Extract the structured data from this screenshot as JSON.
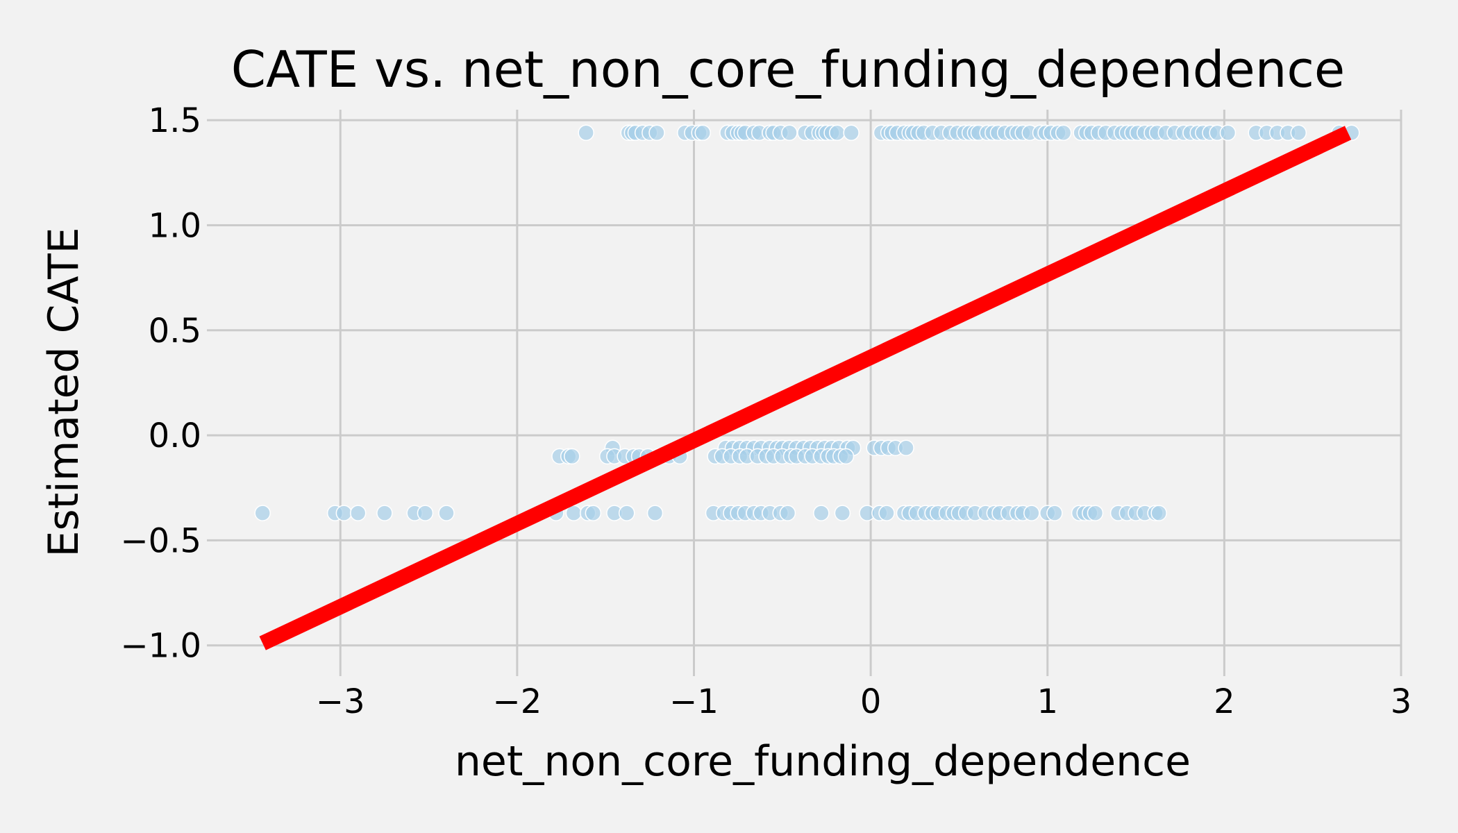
{
  "chart_data": {
    "type": "scatter",
    "title": "CATE vs. net_non_core_funding_dependence",
    "xlabel": "net_non_core_funding_dependence",
    "ylabel": "Estimated CATE",
    "xlim": [
      -3.7,
      3.0
    ],
    "ylim": [
      -1.1,
      1.55
    ],
    "xticks": [
      -3,
      -2,
      -1,
      0,
      1,
      2,
      3
    ],
    "xtick_labels": [
      "−3",
      "−2",
      "−1",
      "0",
      "1",
      "2",
      "3"
    ],
    "yticks": [
      -1.0,
      -0.5,
      0.0,
      0.5,
      1.0,
      1.5
    ],
    "ytick_labels": [
      "−1.0",
      "−0.5",
      "0.0",
      "0.5",
      "1.0",
      "1.5"
    ],
    "grid": true,
    "colors": {
      "points": "#a6cfe8",
      "fit_line": "#ff0000",
      "background": "#f2f2f2",
      "grid": "#cbcbcb"
    },
    "series": [
      {
        "kind": "scatter",
        "y_levels": [
          {
            "y": 1.44,
            "x": [
              -1.61,
              -1.37,
              -1.35,
              -1.33,
              -1.29,
              -1.25,
              -1.21,
              -1.05,
              -1.01,
              -0.97,
              -0.95,
              -0.81,
              -0.78,
              -0.75,
              -0.73,
              -0.71,
              -0.66,
              -0.63,
              -0.57,
              -0.55,
              -0.51,
              -0.46,
              -0.37,
              -0.33,
              -0.29,
              -0.27,
              -0.25,
              -0.22,
              -0.19,
              -0.11,
              0.06,
              0.1,
              0.12,
              0.15,
              0.19,
              0.22,
              0.24,
              0.27,
              0.3,
              0.35,
              0.4,
              0.45,
              0.49,
              0.53,
              0.56,
              0.59,
              0.61,
              0.66,
              0.69,
              0.72,
              0.76,
              0.8,
              0.83,
              0.86,
              0.9,
              0.96,
              0.99,
              1.02,
              1.06,
              1.09,
              1.19,
              1.22,
              1.25,
              1.29,
              1.33,
              1.38,
              1.42,
              1.45,
              1.48,
              1.51,
              1.55,
              1.59,
              1.62,
              1.67,
              1.72,
              1.77,
              1.81,
              1.85,
              1.88,
              1.92,
              1.96,
              2.02,
              2.18,
              2.24,
              2.3,
              2.36,
              2.42,
              2.65,
              2.72
            ]
          },
          {
            "y": -0.06,
            "x": [
              -1.46,
              -0.82,
              -0.78,
              -0.74,
              -0.7,
              -0.66,
              -0.62,
              -0.57,
              -0.53,
              -0.5,
              -0.46,
              -0.42,
              -0.38,
              -0.34,
              -0.3,
              -0.26,
              -0.22,
              -0.18,
              -0.13,
              -0.1,
              0.02,
              0.06,
              0.1,
              0.14,
              0.2
            ]
          },
          {
            "y": -0.1,
            "x": [
              -1.76,
              -1.71,
              -1.69,
              -1.49,
              -1.45,
              -1.39,
              -1.34,
              -1.31,
              -1.26,
              -1.2,
              -1.14,
              -1.08,
              -0.88,
              -0.84,
              -0.79,
              -0.74,
              -0.7,
              -0.64,
              -0.59,
              -0.55,
              -0.5,
              -0.45,
              -0.42,
              -0.37,
              -0.33,
              -0.28,
              -0.24,
              -0.21,
              -0.17,
              -0.14
            ]
          },
          {
            "y": -0.37,
            "x": [
              -3.44,
              -3.03,
              -2.98,
              -2.9,
              -2.75,
              -2.58,
              -2.52,
              -2.4,
              -1.78,
              -1.68,
              -1.6,
              -1.57,
              -1.45,
              -1.38,
              -1.22,
              -0.89,
              -0.83,
              -0.79,
              -0.75,
              -0.71,
              -0.66,
              -0.62,
              -0.57,
              -0.51,
              -0.47,
              -0.28,
              -0.16,
              -0.02,
              0.05,
              0.09,
              0.19,
              0.22,
              0.26,
              0.31,
              0.35,
              0.38,
              0.43,
              0.47,
              0.5,
              0.54,
              0.59,
              0.65,
              0.7,
              0.73,
              0.78,
              0.83,
              0.86,
              0.91,
              1.0,
              1.04,
              1.18,
              1.21,
              1.24,
              1.27,
              1.4,
              1.45,
              1.5,
              1.55,
              1.61,
              1.63
            ]
          }
        ]
      },
      {
        "kind": "line",
        "x": [
          -3.44,
          2.7
        ],
        "y": [
          -0.99,
          1.44
        ]
      }
    ]
  }
}
